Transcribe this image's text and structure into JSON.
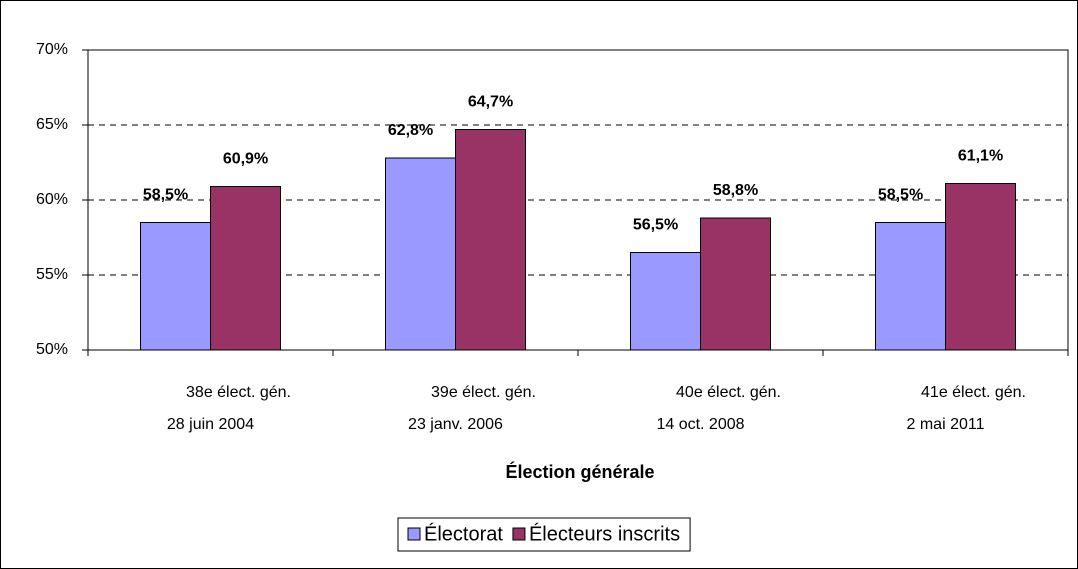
{
  "chart_data": {
    "type": "bar",
    "x_label": "Élection générale",
    "categories": [
      [
        "38e élect. gén.",
        "28 juin 2004"
      ],
      [
        "39e élect. gén.",
        "23 janv. 2006"
      ],
      [
        "40e élect. gén.",
        "14 oct. 2008"
      ],
      [
        "41e élect. gén.",
        "2 mai 2011"
      ]
    ],
    "series": [
      {
        "name": "Électorat",
        "color": "#9999ff",
        "values": [
          58.5,
          62.8,
          56.5,
          58.5
        ],
        "value_labels": [
          "58,5%",
          "62,8%",
          "56,5%",
          "58,5%"
        ]
      },
      {
        "name": "Électeurs inscrits",
        "color": "#993366",
        "values": [
          60.9,
          64.7,
          58.8,
          61.1
        ],
        "value_labels": [
          "60,9%",
          "64,7%",
          "58,8%",
          "61,1%"
        ]
      }
    ],
    "ylim": [
      50,
      70
    ],
    "yticks": [
      {
        "value": 50,
        "label": "50%"
      },
      {
        "value": 55,
        "label": "55%"
      },
      {
        "value": 60,
        "label": "60%"
      },
      {
        "value": 65,
        "label": "65%"
      },
      {
        "value": 70,
        "label": "70%"
      }
    ],
    "grid": true,
    "legend": "bottom"
  }
}
